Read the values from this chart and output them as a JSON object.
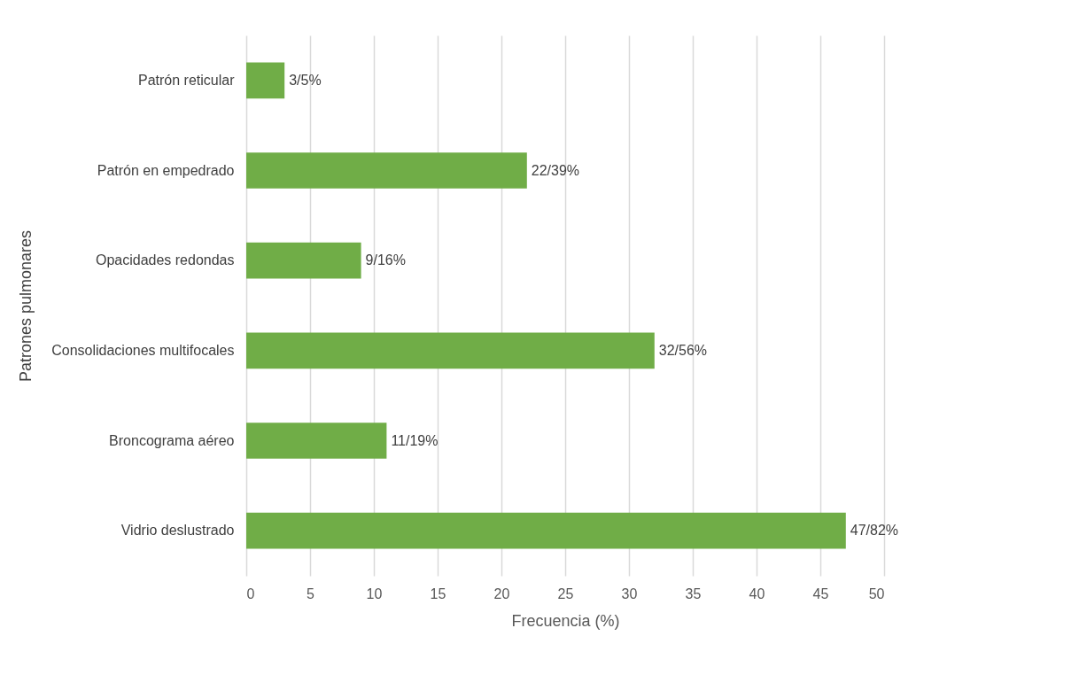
{
  "chart_data": {
    "type": "bar",
    "orientation": "horizontal",
    "xlabel": "Frecuencia (%)",
    "ylabel": "Patrones pulmonares",
    "categories": [
      "Patrón reticular",
      "Patrón en empedrado",
      "Opacidades redondas",
      "Consolidaciones multifocales",
      "Broncograma aéreo",
      "Vidrio deslustrado"
    ],
    "values": [
      3,
      22,
      9,
      32,
      11,
      47
    ],
    "value_labels": [
      "3/5%",
      "22/39%",
      "9/16%",
      "32/56%",
      "11/19%",
      "47/82%"
    ],
    "color": "#70ad47",
    "xlim": [
      0,
      50
    ],
    "xticks": [
      0,
      5,
      10,
      15,
      20,
      25,
      30,
      35,
      40,
      45,
      50
    ],
    "grid": "x"
  }
}
